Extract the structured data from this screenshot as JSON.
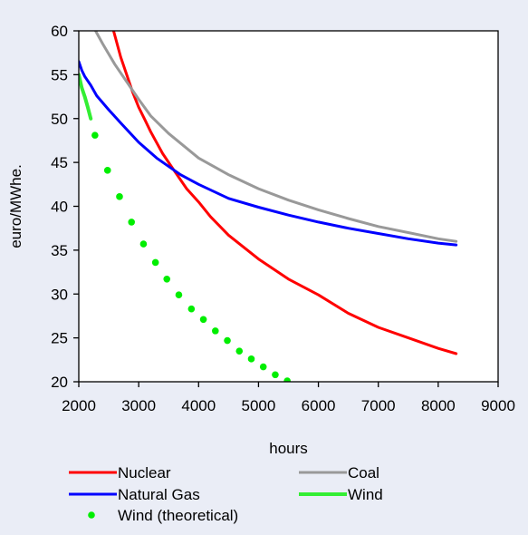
{
  "chart_data": {
    "type": "line",
    "title": "",
    "xlabel": "hours",
    "ylabel": "euro/MWhe.",
    "xlim": [
      2000,
      9000
    ],
    "ylim": [
      20,
      60
    ],
    "xticks": [
      "2000",
      "3000",
      "4000",
      "5000",
      "6000",
      "7000",
      "8000",
      "9000"
    ],
    "yticks": [
      "20",
      "25",
      "30",
      "35",
      "40",
      "45",
      "50",
      "55",
      "60"
    ],
    "grid": false,
    "legend_position": "bottom",
    "series": [
      {
        "name": "Nuclear",
        "color": "#ff0000",
        "style": "line",
        "x": [
          2580,
          2700,
          2800,
          2900,
          3000,
          3100,
          3200,
          3400,
          3600,
          3800,
          4000,
          4200,
          4500,
          5000,
          5500,
          6000,
          6500,
          7000,
          7500,
          8000,
          8300
        ],
        "y": [
          60,
          57,
          55,
          53,
          51.3,
          49.9,
          48.5,
          46,
          44,
          42,
          40.5,
          38.8,
          36.7,
          34,
          31.7,
          29.9,
          27.8,
          26.2,
          25,
          23.8,
          23.2
        ]
      },
      {
        "name": "Coal",
        "color": "#999999",
        "style": "line",
        "x": [
          2280,
          2400,
          2600,
          2800,
          3000,
          3200,
          3500,
          4000,
          4500,
          5000,
          5500,
          6000,
          6500,
          7000,
          7500,
          8000,
          8300
        ],
        "y": [
          60,
          58.5,
          56.2,
          54.2,
          52.2,
          50.3,
          48.3,
          45.5,
          43.6,
          42,
          40.7,
          39.6,
          38.6,
          37.7,
          37,
          36.3,
          36
        ]
      },
      {
        "name": "Natural Gas",
        "color": "#0000ff",
        "style": "line",
        "x": [
          2000,
          2050,
          2100,
          2200,
          2300,
          2500,
          2700,
          3000,
          3300,
          3700,
          4000,
          4500,
          5000,
          5500,
          6000,
          6500,
          7000,
          7500,
          8000,
          8300
        ],
        "y": [
          56.5,
          55.5,
          54.8,
          53.8,
          52.6,
          51,
          49.5,
          47.3,
          45.5,
          43.6,
          42.5,
          40.9,
          39.9,
          39,
          38.2,
          37.5,
          36.9,
          36.3,
          35.8,
          35.6
        ]
      },
      {
        "name": "Wind",
        "color": "#33ee33",
        "style": "line",
        "x": [
          2000,
          2050,
          2100,
          2150,
          2200
        ],
        "y": [
          55,
          53.5,
          52.5,
          51.3,
          50
        ]
      },
      {
        "name": "Wind (theoretical)",
        "color": "#00ee00",
        "style": "dots",
        "x": [
          2270,
          2480,
          2680,
          2880,
          3080,
          3280,
          3470,
          3670,
          3880,
          4080,
          4280,
          4480,
          4680,
          4880,
          5080,
          5280,
          5480
        ],
        "y": [
          48.1,
          44.1,
          41.1,
          38.2,
          35.7,
          33.6,
          31.7,
          29.9,
          28.3,
          27.1,
          25.8,
          24.7,
          23.5,
          22.6,
          21.7,
          20.8,
          20.1
        ]
      }
    ],
    "legend": [
      {
        "label": "Nuclear",
        "series": 0
      },
      {
        "label": "Coal",
        "series": 1
      },
      {
        "label": "Natural Gas",
        "series": 2
      },
      {
        "label": "Wind",
        "series": 3
      },
      {
        "label": "Wind (theoretical)",
        "series": 4
      }
    ]
  },
  "colors": {
    "panel_background": "#eaedf6",
    "plot_background": "#ffffff",
    "axis": "#000000"
  }
}
